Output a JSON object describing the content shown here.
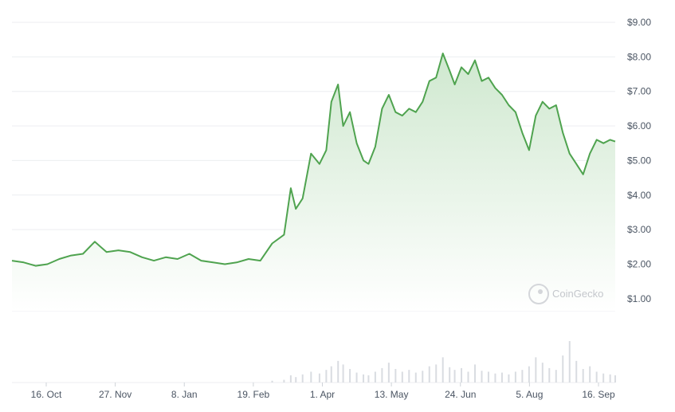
{
  "watermark": "CoinGecko",
  "colors": {
    "line": "#4fa34f",
    "area_top": "#cfe8cf",
    "area_bottom": "#ffffff",
    "grid": "#eceef1",
    "volume": "#d9dce1",
    "axis_text": "#4b5563"
  },
  "chart_data": {
    "type": "area",
    "title": "",
    "xlabel": "",
    "ylabel": "",
    "y_ticks": [
      "$1.00",
      "$2.00",
      "$3.00",
      "$4.00",
      "$5.00",
      "$6.00",
      "$7.00",
      "$8.00",
      "$9.00"
    ],
    "x_ticks": [
      "16. Oct",
      "27. Nov",
      "8. Jan",
      "19. Feb",
      "1. Apr",
      "13. May",
      "24. Jun",
      "5. Aug",
      "16. Sep"
    ],
    "ylim": [
      0.65,
      9.0
    ],
    "grid": true,
    "series": [
      {
        "x": [
          "2023-09-30",
          "2023-10-07",
          "2023-10-14",
          "2023-10-21",
          "2023-10-28",
          "2023-11-04",
          "2023-11-11",
          "2023-11-18",
          "2023-11-25",
          "2023-12-02",
          "2023-12-09",
          "2023-12-16",
          "2023-12-23",
          "2023-12-30",
          "2024-01-06",
          "2024-01-13",
          "2024-01-20",
          "2024-01-27",
          "2024-02-03",
          "2024-02-10",
          "2024-02-17",
          "2024-02-24",
          "2024-03-02",
          "2024-03-09",
          "2024-03-13",
          "2024-03-16",
          "2024-03-20",
          "2024-03-25",
          "2024-03-30",
          "2024-04-03",
          "2024-04-06",
          "2024-04-10",
          "2024-04-13",
          "2024-04-17",
          "2024-04-21",
          "2024-04-25",
          "2024-04-28",
          "2024-05-02",
          "2024-05-06",
          "2024-05-10",
          "2024-05-14",
          "2024-05-18",
          "2024-05-22",
          "2024-05-26",
          "2024-05-30",
          "2024-06-03",
          "2024-06-07",
          "2024-06-11",
          "2024-06-15",
          "2024-06-18",
          "2024-06-22",
          "2024-06-26",
          "2024-06-30",
          "2024-07-04",
          "2024-07-08",
          "2024-07-12",
          "2024-07-16",
          "2024-07-20",
          "2024-07-24",
          "2024-07-28",
          "2024-08-01",
          "2024-08-05",
          "2024-08-09",
          "2024-08-13",
          "2024-08-17",
          "2024-08-21",
          "2024-08-25",
          "2024-08-29",
          "2024-09-02",
          "2024-09-06",
          "2024-09-10",
          "2024-09-14",
          "2024-09-18",
          "2024-09-21"
        ],
        "values": [
          2.1,
          2.05,
          1.95,
          2.0,
          2.15,
          2.25,
          2.3,
          2.65,
          2.35,
          2.4,
          2.35,
          2.2,
          2.1,
          2.2,
          2.15,
          2.3,
          2.1,
          2.05,
          2.0,
          2.05,
          2.15,
          2.1,
          2.6,
          2.85,
          4.2,
          3.6,
          3.9,
          5.2,
          4.9,
          5.3,
          6.7,
          7.2,
          6.0,
          6.4,
          5.5,
          5.0,
          4.9,
          5.4,
          6.5,
          6.9,
          6.4,
          6.3,
          6.5,
          6.4,
          6.7,
          7.3,
          7.4,
          8.1,
          7.6,
          7.2,
          7.7,
          7.5,
          7.9,
          7.3,
          7.4,
          7.1,
          6.9,
          6.6,
          6.4,
          5.8,
          5.3,
          6.3,
          6.7,
          6.5,
          6.6,
          5.8,
          5.2,
          4.9,
          4.6,
          5.2,
          5.6,
          5.5,
          5.6,
          5.55
        ]
      }
    ],
    "volume": [
      0,
      0,
      0,
      0,
      0,
      0,
      0,
      0,
      0,
      0,
      0,
      0,
      0,
      0,
      0,
      0,
      0,
      0,
      0,
      0,
      0,
      0,
      2,
      3,
      8,
      6,
      9,
      12,
      10,
      14,
      18,
      24,
      20,
      15,
      11,
      9,
      8,
      12,
      16,
      22,
      15,
      12,
      14,
      11,
      13,
      18,
      20,
      28,
      17,
      14,
      16,
      12,
      20,
      13,
      12,
      10,
      11,
      9,
      12,
      14,
      18,
      28,
      22,
      16,
      14,
      30,
      46,
      24,
      15,
      18,
      12,
      10,
      9,
      8
    ]
  }
}
